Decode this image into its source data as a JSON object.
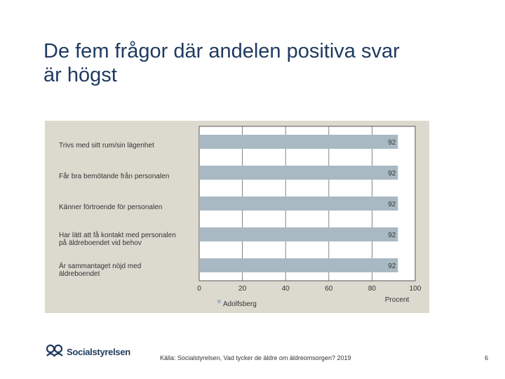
{
  "title_line1": "De fem frågor där andelen positiva svar",
  "title_line2": "är högst",
  "chart_data": {
    "type": "bar",
    "orientation": "horizontal",
    "categories": [
      [
        "Trivs med sitt rum/sin lägenhet"
      ],
      [
        "Får bra bemötande från personalen"
      ],
      [
        "Känner förtroende för personalen"
      ],
      [
        "Har lätt att få kontakt med personalen",
        "på äldreboendet vid behov"
      ],
      [
        "Är sammantaget nöjd med",
        "äldreboendet"
      ]
    ],
    "series": [
      {
        "name": "Adolfsberg",
        "values": [
          92,
          92,
          92,
          92,
          92
        ],
        "color": "#a9b9c3"
      }
    ],
    "xlim": [
      0,
      100
    ],
    "xticks": [
      "0",
      "20",
      "40",
      "60",
      "80",
      "100"
    ],
    "xlabel": "Procent",
    "legend_position": "bottom",
    "grid": true,
    "background": "#dcd9cf",
    "plot_background": "#ffffff"
  },
  "logo_text": "Socialstyrelsen",
  "source": "Källa: Socialstyrelsen, Vad tycker de äldre om äldreomsorgen? 2019",
  "page_number": "6"
}
